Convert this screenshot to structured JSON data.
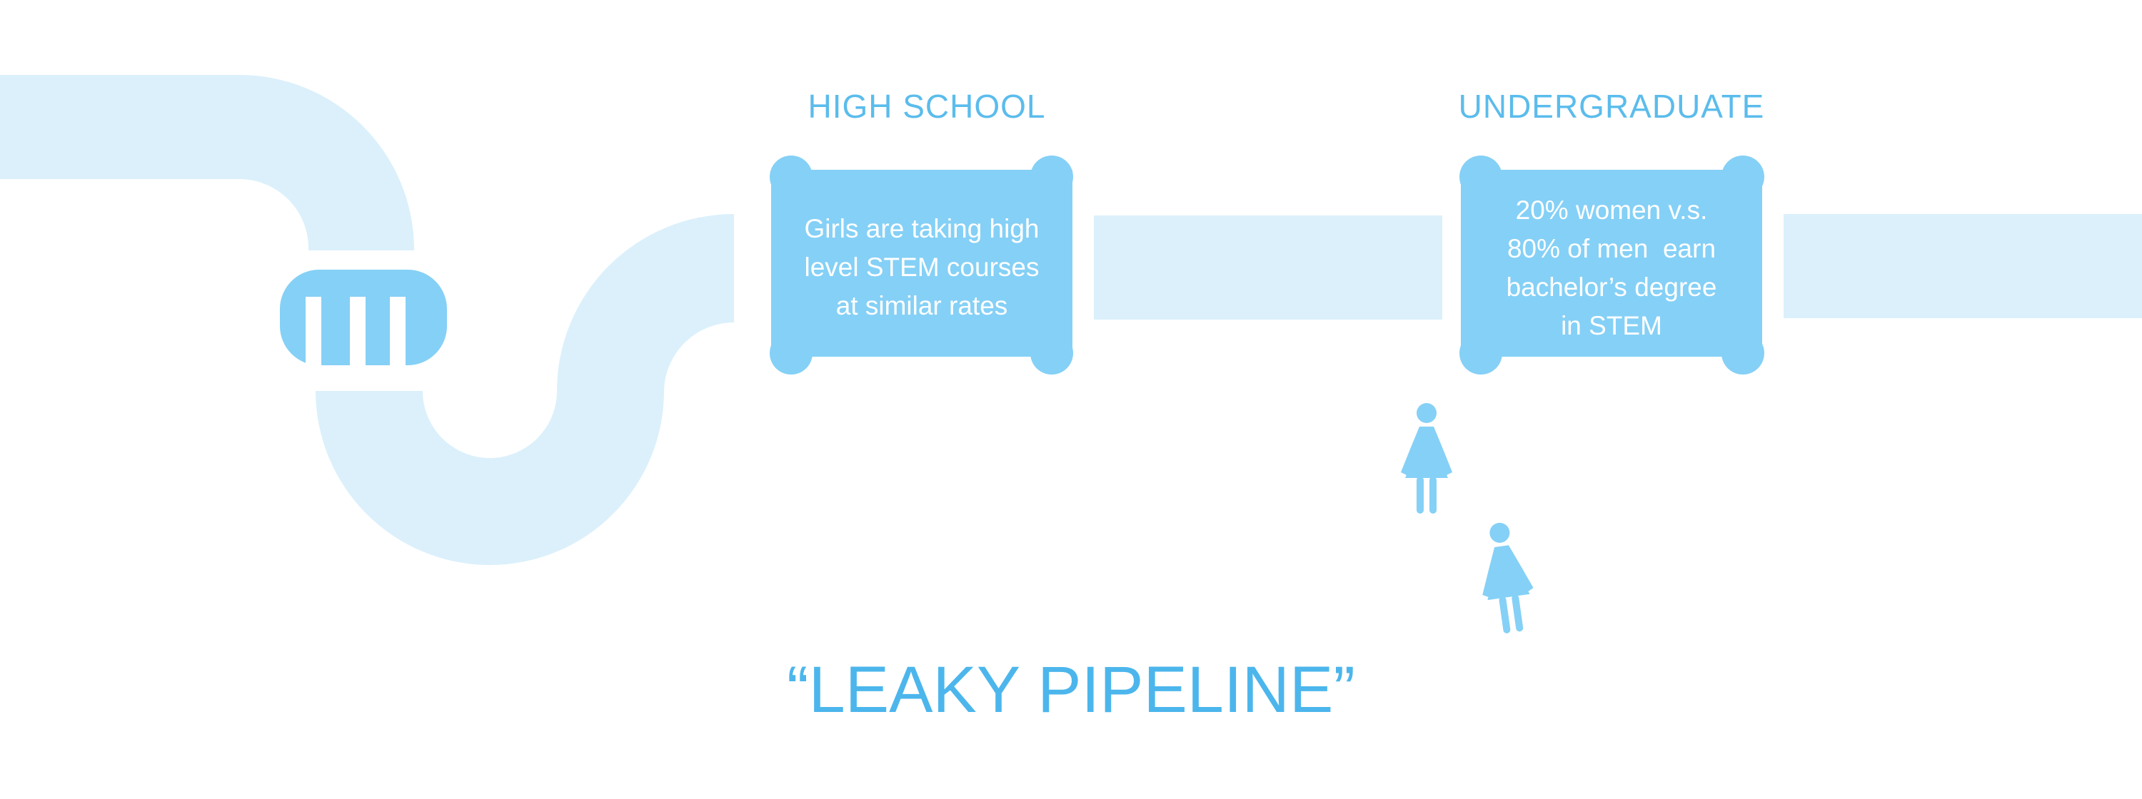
{
  "title": "“LEAKY PIPELINE”",
  "stages": [
    {
      "label": "HIGH SCHOOL",
      "lines": [
        "Girls are taking high",
        "level STEM courses",
        "at similar rates"
      ]
    },
    {
      "label": "UNDERGRADUATE",
      "lines": [
        "20% women v.s.",
        "80% of men  earn",
        "bachelor’s degree",
        "in STEM"
      ]
    }
  ],
  "colors": {
    "pipe_light": "#dbf0fb",
    "box_fill": "#85d0f6",
    "text_accent": "#5bbcec",
    "figure": "#85d0f6"
  },
  "icons": [
    "pipe-icon",
    "drain-grate-icon",
    "woman-figure-icon",
    "woman-figure-icon"
  ]
}
